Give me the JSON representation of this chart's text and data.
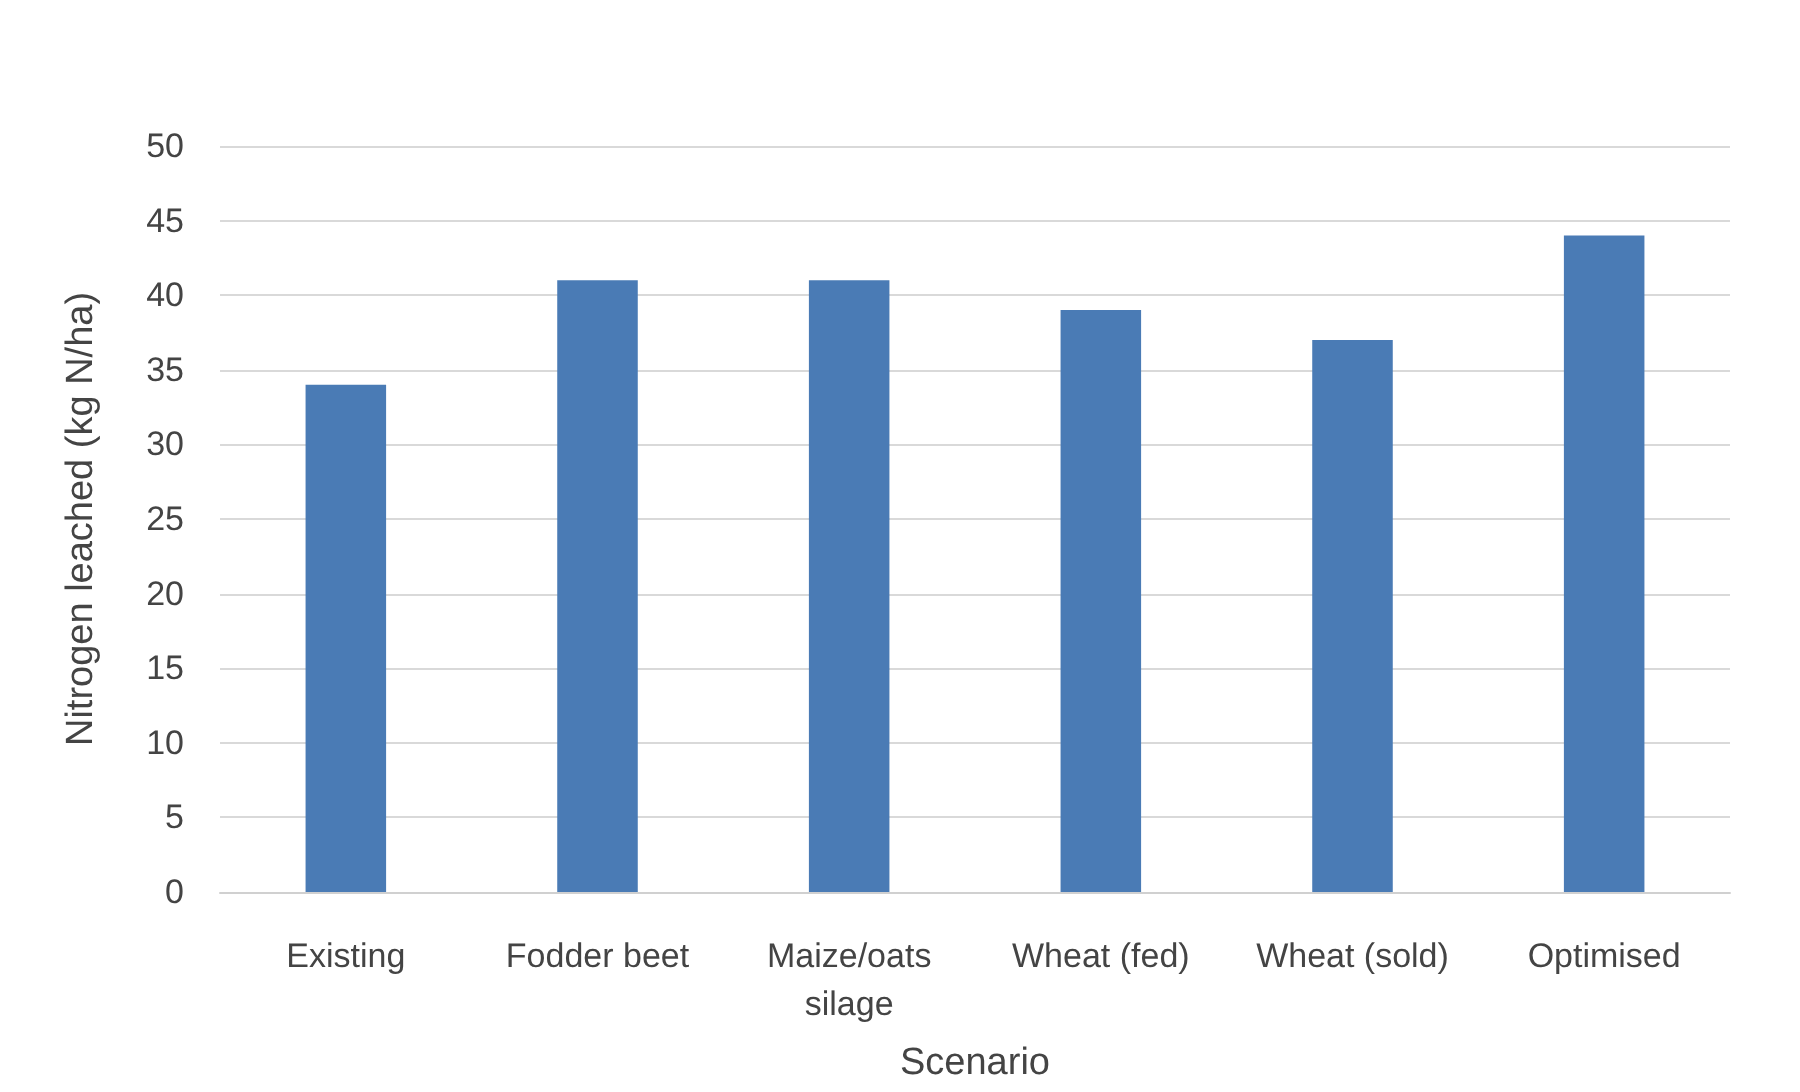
{
  "chart_data": {
    "type": "bar",
    "xlabel": "Scenario",
    "ylabel": "Nitrogen leached (kg N/ha)",
    "categories": [
      "Existing",
      "Fodder beet",
      "Maize/oats\nsilage",
      "Wheat (fed)",
      "Wheat (sold)",
      "Optimised"
    ],
    "values": [
      34,
      41,
      41,
      39,
      37,
      44
    ],
    "color": "#4a7bb5",
    "ylim": [
      0,
      50
    ],
    "yticks": [
      0,
      5,
      10,
      15,
      20,
      25,
      30,
      35,
      40,
      45,
      50
    ],
    "grid": "y"
  }
}
